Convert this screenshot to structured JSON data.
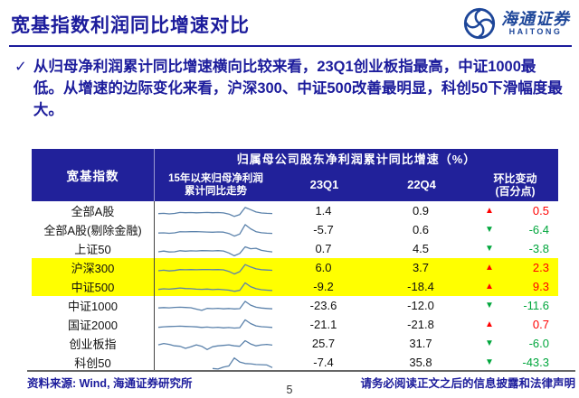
{
  "page": {
    "title": "宽基指数利润同比增速对比",
    "logo_cn": "海通证券",
    "logo_en": "HAITONG",
    "bullet_check": "✓",
    "bullet": "从归母净利润累计同比增速横向比较来看，23Q1创业板指最高，中证1000最低。从增速的边际变化来看，沪深300、中证500改善最明显，科创50下滑幅度最大。",
    "footer_left": "资料来源: Wind, 海通证券研究所",
    "footer_right": "请务必阅读正文之后的信息披露和法律声明",
    "page_number": "5"
  },
  "table": {
    "col1_header": "宽基指数",
    "span_header": "归属母公司股东净利润累计同比增速（%）",
    "trend_header": "15年以来归母净利润\n累计同比走势",
    "q1_header": "23Q1",
    "q4_header": "22Q4",
    "change_header": "环比变动\n(百分点)",
    "rows": [
      {
        "name": "全部A股",
        "q1": "1.4",
        "q4": "0.9",
        "dir": "up",
        "chg": "0.5",
        "highlight": false,
        "spark": [
          0.25,
          0.3,
          0.2,
          0.28,
          0.5,
          0.45,
          0.48,
          0.42,
          0.46,
          0.5,
          0.44,
          0.48,
          0.4,
          0.15,
          -0.35,
          0.05,
          1.55,
          1.1,
          0.6,
          0.38,
          0.3,
          0.26
        ]
      },
      {
        "name": "全部A股(剔除金融)",
        "q1": "-5.7",
        "q4": "0.6",
        "dir": "down",
        "chg": "-6.4",
        "highlight": false,
        "spark": [
          0.15,
          0.2,
          0.1,
          0.2,
          0.42,
          0.4,
          0.44,
          0.46,
          0.4,
          0.36,
          0.32,
          0.38,
          0.34,
          0.05,
          -0.5,
          -0.05,
          1.95,
          1.05,
          0.45,
          0.22,
          0.12,
          0.08
        ]
      },
      {
        "name": "上证50",
        "q1": "0.7",
        "q4": "4.5",
        "dir": "down",
        "chg": "-3.8",
        "highlight": false,
        "spark": [
          0.2,
          0.35,
          0.15,
          0.2,
          0.42,
          0.32,
          0.4,
          0.36,
          0.45,
          0.42,
          0.38,
          0.44,
          0.36,
          -0.05,
          -0.65,
          -0.15,
          1.25,
          0.85,
          0.95,
          0.5,
          0.3,
          0.18
        ]
      },
      {
        "name": "沪深300",
        "q1": "6.0",
        "q4": "3.7",
        "dir": "up",
        "chg": "2.3",
        "highlight": true,
        "spark": [
          0.2,
          0.3,
          0.15,
          0.25,
          0.45,
          0.4,
          0.44,
          0.4,
          0.44,
          0.46,
          0.42,
          0.45,
          0.38,
          0.05,
          -0.5,
          0.0,
          1.5,
          1.0,
          0.6,
          0.42,
          0.34,
          0.28
        ]
      },
      {
        "name": "中证500",
        "q1": "-9.2",
        "q4": "-18.4",
        "dir": "up",
        "chg": "9.3",
        "highlight": true,
        "spark": [
          0.25,
          0.38,
          0.3,
          0.42,
          0.55,
          0.45,
          0.4,
          0.3,
          0.26,
          0.32,
          0.22,
          0.28,
          0.2,
          0.1,
          -0.15,
          0.05,
          1.65,
          0.85,
          0.4,
          0.2,
          0.1,
          0.02
        ]
      },
      {
        "name": "中证1000",
        "q1": "-23.6",
        "q4": "-12.0",
        "dir": "down",
        "chg": "-11.6",
        "highlight": false,
        "spark": [
          0.35,
          0.42,
          0.36,
          0.46,
          0.5,
          0.44,
          0.38,
          0.1,
          -0.18,
          0.25,
          0.2,
          0.26,
          0.16,
          0.24,
          0.14,
          0.2,
          1.75,
          0.95,
          0.5,
          0.32,
          0.24,
          0.16
        ]
      },
      {
        "name": "国证2000",
        "q1": "-21.1",
        "q4": "-21.8",
        "dir": "up",
        "chg": "0.7",
        "highlight": false,
        "spark": [
          0.25,
          0.36,
          0.42,
          0.46,
          0.5,
          0.44,
          0.4,
          0.34,
          0.24,
          0.3,
          0.2,
          0.26,
          0.14,
          0.22,
          0.1,
          0.18,
          1.85,
          1.05,
          0.55,
          0.38,
          0.3,
          0.24
        ]
      },
      {
        "name": "创业板指",
        "q1": "25.7",
        "q4": "31.7",
        "dir": "down",
        "chg": "-6.0",
        "highlight": false,
        "spark": [
          0.55,
          0.85,
          0.65,
          0.35,
          0.25,
          -0.2,
          0.15,
          0.55,
          0.25,
          -0.45,
          0.15,
          0.35,
          0.45,
          0.55,
          0.35,
          0.25,
          1.45,
          0.75,
          0.35,
          0.55,
          0.65,
          0.5
        ]
      },
      {
        "name": "科创50",
        "q1": "-7.4",
        "q4": "35.8",
        "dir": "down",
        "chg": "-43.3",
        "highlight": false,
        "spark": [
          null,
          null,
          null,
          null,
          null,
          null,
          null,
          null,
          null,
          null,
          -0.45,
          -0.55,
          -0.15,
          0.1,
          1.8,
          0.95,
          0.62,
          0.55,
          0.4,
          0.36,
          0.3,
          -0.25
        ]
      }
    ]
  },
  "colors": {
    "navy_text": "#1c1c9c",
    "table_header_bg": "#21219a",
    "highlight_yellow": "#ffff00",
    "up_red": "#ff0000",
    "down_green": "#00a63c",
    "sparkline_blue": "#5b82ab",
    "logo_blue": "#1d4699"
  },
  "chart_data": {
    "type": "table",
    "title": "归属母公司股东净利润累计同比增速（%）",
    "columns": [
      "宽基指数",
      "23Q1",
      "22Q4",
      "环比变动(百分点)"
    ],
    "rows": [
      [
        "全部A股",
        1.4,
        0.9,
        0.5
      ],
      [
        "全部A股(剔除金融)",
        -5.7,
        0.6,
        -6.4
      ],
      [
        "上证50",
        0.7,
        4.5,
        -3.8
      ],
      [
        "沪深300",
        6.0,
        3.7,
        2.3
      ],
      [
        "中证500",
        -9.2,
        -18.4,
        9.3
      ],
      [
        "中证1000",
        -23.6,
        -12.0,
        -11.6
      ],
      [
        "国证2000",
        -21.1,
        -21.8,
        0.7
      ],
      [
        "创业板指",
        25.7,
        31.7,
        -6.0
      ],
      [
        "科创50",
        -7.4,
        35.8,
        -43.3
      ]
    ],
    "highlighted_rows": [
      "沪深300",
      "中证500"
    ]
  }
}
